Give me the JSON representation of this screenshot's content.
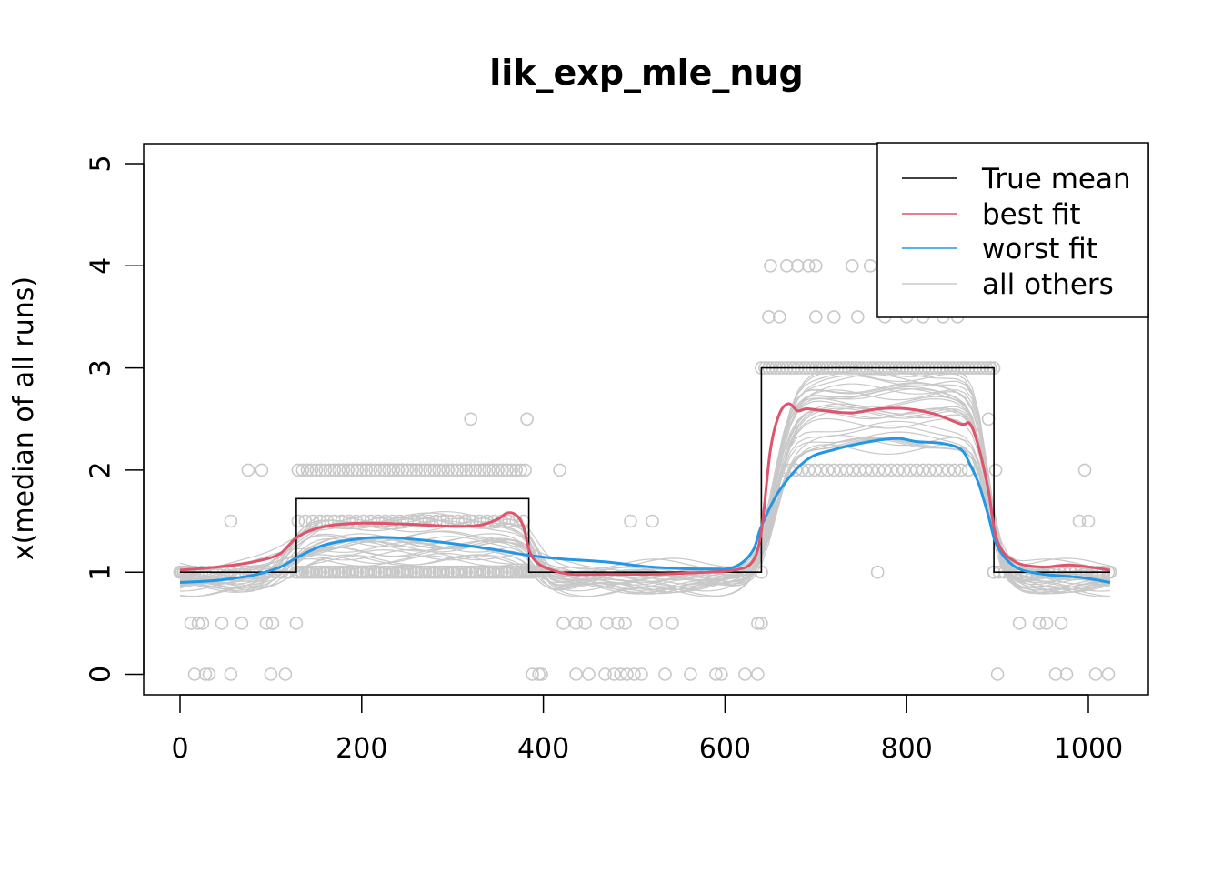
{
  "chart_data": {
    "type": "line",
    "title": "lik_exp_mle_nug",
    "xlabel": "",
    "ylabel": "x(median of all runs)",
    "xlim": [
      0,
      1024
    ],
    "ylim": [
      0,
      5
    ],
    "xticks": [
      0,
      200,
      400,
      600,
      800,
      1000
    ],
    "yticks": [
      0,
      1,
      2,
      3,
      4,
      5
    ],
    "legend_position": "top-right",
    "legend": [
      {
        "label": "True mean",
        "color": "#000000"
      },
      {
        "label": "best fit",
        "color": "#DF536B"
      },
      {
        "label": "worst fit",
        "color": "#2297E6"
      },
      {
        "label": "all others",
        "color": "#C8C8C8"
      }
    ],
    "true_mean": {
      "x": [
        0,
        128,
        128,
        384,
        384,
        640,
        640,
        896,
        896,
        1024
      ],
      "y": [
        1,
        1,
        1.72,
        1.72,
        1,
        1,
        3,
        3,
        1,
        1
      ]
    },
    "series": [
      {
        "name": "best fit",
        "color": "#DF536B",
        "x": [
          0,
          40,
          80,
          110,
          130,
          160,
          200,
          250,
          300,
          330,
          350,
          360,
          370,
          378,
          385,
          395,
          410,
          430,
          470,
          520,
          580,
          610,
          630,
          640,
          650,
          660,
          670,
          680,
          690,
          710,
          740,
          770,
          800,
          830,
          860,
          870,
          880,
          890,
          900,
          920,
          950,
          980,
          1024
        ],
        "y": [
          1.02,
          1.05,
          1.1,
          1.18,
          1.35,
          1.45,
          1.48,
          1.47,
          1.45,
          1.46,
          1.52,
          1.58,
          1.56,
          1.45,
          1.2,
          1.08,
          1.02,
          0.98,
          0.98,
          0.98,
          1.0,
          1.02,
          1.1,
          1.4,
          2.2,
          2.55,
          2.65,
          2.58,
          2.6,
          2.58,
          2.56,
          2.6,
          2.6,
          2.55,
          2.45,
          2.45,
          2.2,
          1.8,
          1.3,
          1.1,
          1.05,
          1.07,
          1.02
        ]
      },
      {
        "name": "worst fit",
        "color": "#2297E6",
        "x": [
          0,
          40,
          80,
          110,
          130,
          160,
          200,
          230,
          260,
          300,
          340,
          380,
          420,
          470,
          520,
          580,
          610,
          630,
          640,
          660,
          690,
          720,
          760,
          790,
          810,
          840,
          860,
          870,
          880,
          890,
          900,
          920,
          950,
          990,
          1024
        ],
        "y": [
          0.9,
          0.92,
          0.97,
          1.05,
          1.15,
          1.27,
          1.33,
          1.34,
          1.32,
          1.28,
          1.23,
          1.17,
          1.13,
          1.1,
          1.05,
          1.03,
          1.05,
          1.2,
          1.45,
          1.8,
          2.1,
          2.2,
          2.28,
          2.31,
          2.28,
          2.26,
          2.2,
          2.05,
          1.85,
          1.55,
          1.25,
          1.05,
          0.98,
          0.95,
          0.9
        ]
      }
    ],
    "points": [
      {
        "x": 0,
        "y": 1
      },
      {
        "x": 12,
        "y": 0.5
      },
      {
        "x": 16,
        "y": 0
      },
      {
        "x": 20,
        "y": 0.5
      },
      {
        "x": 25,
        "y": 0.5
      },
      {
        "x": 28,
        "y": 0
      },
      {
        "x": 32,
        "y": 0
      },
      {
        "x": 46,
        "y": 0.5
      },
      {
        "x": 56,
        "y": 1.5
      },
      {
        "x": 56,
        "y": 0
      },
      {
        "x": 68,
        "y": 0.5
      },
      {
        "x": 75,
        "y": 2
      },
      {
        "x": 90,
        "y": 2
      },
      {
        "x": 95,
        "y": 0.5
      },
      {
        "x": 102,
        "y": 0.5
      },
      {
        "x": 100,
        "y": 0
      },
      {
        "x": 116,
        "y": 0
      },
      {
        "x": 128,
        "y": 0.5
      },
      {
        "x": 1024,
        "y": 1
      },
      {
        "x": 320,
        "y": 2.5
      },
      {
        "x": 382,
        "y": 2.5
      },
      {
        "x": 418,
        "y": 2
      },
      {
        "x": 388,
        "y": 0
      },
      {
        "x": 395,
        "y": 0
      },
      {
        "x": 398,
        "y": 0
      },
      {
        "x": 422,
        "y": 0.5
      },
      {
        "x": 436,
        "y": 0.5
      },
      {
        "x": 446,
        "y": 0.5
      },
      {
        "x": 436,
        "y": 0
      },
      {
        "x": 450,
        "y": 0
      },
      {
        "x": 470,
        "y": 0.5
      },
      {
        "x": 468,
        "y": 0
      },
      {
        "x": 482,
        "y": 0.5
      },
      {
        "x": 490,
        "y": 0.5
      },
      {
        "x": 478,
        "y": 0
      },
      {
        "x": 485,
        "y": 0
      },
      {
        "x": 492,
        "y": 0
      },
      {
        "x": 500,
        "y": 0
      },
      {
        "x": 508,
        "y": 0
      },
      {
        "x": 496,
        "y": 1.5
      },
      {
        "x": 520,
        "y": 1.5
      },
      {
        "x": 524,
        "y": 0.5
      },
      {
        "x": 542,
        "y": 0.5
      },
      {
        "x": 534,
        "y": 0
      },
      {
        "x": 562,
        "y": 0
      },
      {
        "x": 590,
        "y": 0
      },
      {
        "x": 596,
        "y": 0
      },
      {
        "x": 622,
        "y": 0
      },
      {
        "x": 636,
        "y": 0
      },
      {
        "x": 636,
        "y": 0.5
      },
      {
        "x": 640,
        "y": 0.5
      },
      {
        "x": 650,
        "y": 4
      },
      {
        "x": 668,
        "y": 4
      },
      {
        "x": 680,
        "y": 4
      },
      {
        "x": 692,
        "y": 4
      },
      {
        "x": 700,
        "y": 4
      },
      {
        "x": 740,
        "y": 4
      },
      {
        "x": 760,
        "y": 4
      },
      {
        "x": 648,
        "y": 3.5
      },
      {
        "x": 660,
        "y": 3.5
      },
      {
        "x": 700,
        "y": 3.5
      },
      {
        "x": 720,
        "y": 3.5
      },
      {
        "x": 746,
        "y": 3.5
      },
      {
        "x": 776,
        "y": 3.5
      },
      {
        "x": 800,
        "y": 3.5
      },
      {
        "x": 818,
        "y": 3.5
      },
      {
        "x": 840,
        "y": 3.5
      },
      {
        "x": 856,
        "y": 3.5
      },
      {
        "x": 892,
        "y": 3
      },
      {
        "x": 868,
        "y": 2
      },
      {
        "x": 898,
        "y": 2
      },
      {
        "x": 890,
        "y": 2.5
      },
      {
        "x": 900,
        "y": 0
      },
      {
        "x": 924,
        "y": 0.5
      },
      {
        "x": 946,
        "y": 0.5
      },
      {
        "x": 954,
        "y": 0.5
      },
      {
        "x": 970,
        "y": 0.5
      },
      {
        "x": 964,
        "y": 0
      },
      {
        "x": 976,
        "y": 0
      },
      {
        "x": 1008,
        "y": 0
      },
      {
        "x": 1022,
        "y": 0
      },
      {
        "x": 996,
        "y": 2
      },
      {
        "x": 990,
        "y": 1.5
      },
      {
        "x": 1000,
        "y": 1.5
      }
    ],
    "point_bands": [
      {
        "x_from": 130,
        "x_to": 384,
        "y": 2,
        "step": 5
      },
      {
        "x_from": 130,
        "x_to": 384,
        "y": 1,
        "step": 5
      },
      {
        "x_from": 130,
        "x_to": 384,
        "y": 1.5,
        "step": 8
      },
      {
        "x_from": 640,
        "x_to": 896,
        "y": 3,
        "step": 4
      },
      {
        "x_from": 640,
        "x_to": 896,
        "y": 1,
        "step": 999
      },
      {
        "x_from": 664,
        "x_to": 860,
        "y": 2,
        "step": 7
      },
      {
        "x_from": 896,
        "x_to": 1024,
        "y": 1,
        "step": 6
      },
      {
        "x_from": 0,
        "x_to": 128,
        "y": 1,
        "step": 8
      },
      {
        "x_from": 384,
        "x_to": 640,
        "y": 1,
        "step": 999
      }
    ]
  }
}
